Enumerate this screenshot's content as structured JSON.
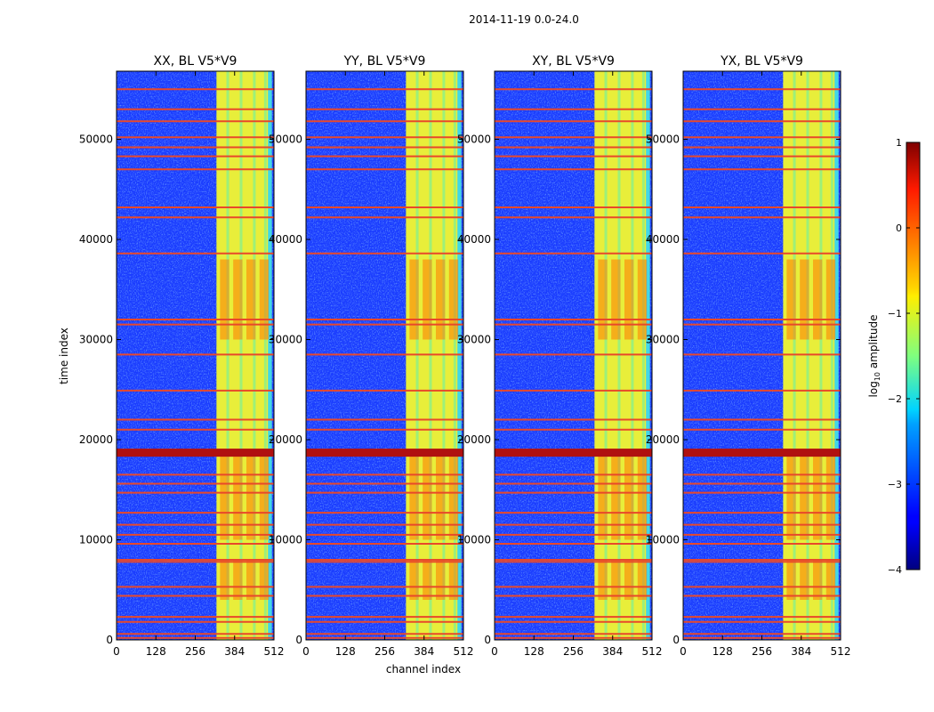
{
  "figure": {
    "suptitle": "2014-11-19 0.0-24.0",
    "xlabel": "channel index",
    "ylabel": "time index",
    "colorbar_label_prefix": "log",
    "colorbar_label_sub": "10",
    "colorbar_label_suffix": " amplitude",
    "colorbar_ticks": [
      "1",
      "0",
      "−1",
      "−2",
      "−3",
      "−4"
    ]
  },
  "chart_data": {
    "type": "heatmap",
    "colormap": "jet",
    "color_range": [
      -4,
      1
    ],
    "x_ticks": [
      "0",
      "128",
      "256",
      "384",
      "512"
    ],
    "y_ticks": [
      "0",
      "10000",
      "20000",
      "30000",
      "40000",
      "50000"
    ],
    "xlim": [
      0,
      512
    ],
    "ylim": [
      0,
      56800
    ],
    "panels": [
      {
        "title": "XX, BL V5*V9"
      },
      {
        "title": "YY, BL V5*V9"
      },
      {
        "title": "XY, BL V5*V9"
      },
      {
        "title": "YX, BL V5*V9"
      }
    ],
    "rfi_band_channels": [
      325,
      505
    ],
    "flagged_time_rows": [
      55000,
      53000,
      51800,
      50200,
      49200,
      48300,
      47000,
      43200,
      42200,
      38600,
      32000,
      31500,
      28500,
      24900,
      22000,
      21000,
      19000,
      18800,
      18600,
      16500,
      15600,
      14700,
      12700,
      11500,
      10500,
      9600,
      8000,
      7800,
      5300,
      4400,
      2300,
      1800,
      600,
      200
    ]
  }
}
